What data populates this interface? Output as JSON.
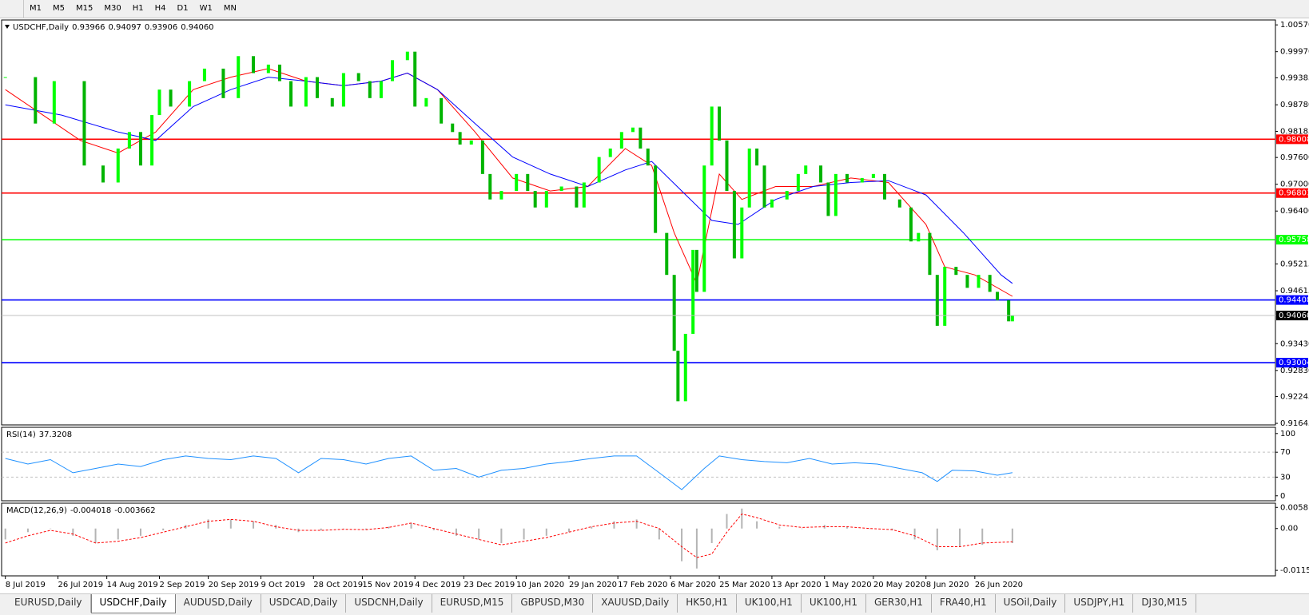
{
  "toolbar": {
    "timeframes": [
      "M1",
      "M5",
      "M15",
      "M30",
      "H1",
      "H4",
      "D1",
      "W1",
      "MN"
    ]
  },
  "chart_data": [
    {
      "type": "candlestick",
      "title": "USDCHF,Daily",
      "header_ohlc": [
        0.93966,
        0.94097,
        0.93906,
        {
          "value": 0.9406,
          "label": "0.94060"
        }
      ],
      "x": [
        0,
        8,
        13,
        21,
        26,
        30,
        33,
        36,
        39,
        41,
        44,
        49,
        53,
        58,
        62,
        66,
        70,
        73,
        76,
        80,
        83,
        87,
        90,
        94,
        97,
        100,
        103,
        107,
        109,
        112,
        116,
        119,
        121,
        124,
        127,
        129,
        132,
        136,
        139,
        141,
        144,
        148,
        152,
        154,
        158,
        161,
        164,
        167,
        169,
        171,
        173,
        176,
        178,
        179,
        181,
        183,
        184,
        186,
        188,
        190,
        192,
        194,
        196,
        198,
        200,
        202,
        204,
        208,
        211,
        213,
        217,
        219,
        221,
        224,
        228,
        231,
        234,
        238,
        241,
        243,
        246,
        248,
        250,
        253,
        256,
        259,
        262,
        264,
        267,
        268
      ],
      "close": [
        0.994,
        0.9836,
        0.9931,
        0.9742,
        0.9704,
        0.978,
        0.9817,
        0.9742,
        0.9855,
        0.9912,
        0.9874,
        0.9931,
        0.9959,
        0.9893,
        0.9987,
        0.9949,
        0.9968,
        0.9931,
        0.9874,
        0.994,
        0.9893,
        0.9874,
        0.9949,
        0.9931,
        0.9893,
        0.9931,
        0.9978,
        0.9997,
        0.9874,
        0.9893,
        0.9836,
        0.9817,
        0.9789,
        0.9798,
        0.9723,
        0.9666,
        0.9685,
        0.9723,
        0.9685,
        0.9648,
        0.9685,
        0.9695,
        0.9648,
        0.9704,
        0.9761,
        0.978,
        0.9817,
        0.9827,
        0.978,
        0.9742,
        0.9591,
        0.9497,
        0.9327,
        0.9214,
        0.9365,
        0.9553,
        0.9459,
        0.9742,
        0.9874,
        0.9798,
        0.9685,
        0.9534,
        0.9648,
        0.978,
        0.9742,
        0.9648,
        0.9666,
        0.9685,
        0.9723,
        0.9742,
        0.9704,
        0.9629,
        0.9723,
        0.9704,
        0.9714,
        0.9723,
        0.9666,
        0.9648,
        0.9572,
        0.9591,
        0.9497,
        0.9383,
        0.9515,
        0.9497,
        0.9468,
        0.9497,
        0.9459,
        0.944,
        0.9393,
        0.9406
      ],
      "up_color": "#00ff00",
      "down_color": "#00b400",
      "moving_averages": [
        {
          "color": "#ff0000",
          "x": [
            0,
            10,
            20,
            30,
            40,
            50,
            60,
            70,
            80,
            90,
            100,
            107,
            115,
            125,
            135,
            145,
            155,
            165,
            172,
            178,
            184,
            190,
            196,
            205,
            215,
            225,
            235,
            245,
            250,
            258,
            268
          ],
          "values": [
            0.9912,
            0.9855,
            0.9798,
            0.977,
            0.9817,
            0.9912,
            0.994,
            0.9959,
            0.9931,
            0.9921,
            0.9931,
            0.9949,
            0.9912,
            0.9817,
            0.9714,
            0.9685,
            0.9695,
            0.978,
            0.9742,
            0.9591,
            0.9478,
            0.9723,
            0.9666,
            0.9695,
            0.9695,
            0.9714,
            0.9704,
            0.961,
            0.9515,
            0.9497,
            0.9449
          ]
        },
        {
          "color": "#0000ff",
          "x": [
            0,
            15,
            30,
            40,
            50,
            60,
            70,
            80,
            90,
            100,
            107,
            115,
            125,
            135,
            145,
            155,
            165,
            172,
            180,
            188,
            195,
            205,
            215,
            225,
            235,
            245,
            255,
            265,
            268
          ],
          "values": [
            0.9878,
            0.9855,
            0.9817,
            0.9798,
            0.9874,
            0.9912,
            0.994,
            0.9931,
            0.9921,
            0.9931,
            0.9949,
            0.9912,
            0.9836,
            0.9761,
            0.9723,
            0.9695,
            0.9732,
            0.9751,
            0.9685,
            0.9619,
            0.961,
            0.9666,
            0.9695,
            0.9704,
            0.9708,
            0.9676,
            0.9591,
            0.9497,
            0.9478
          ]
        }
      ],
      "levels": [
        {
          "value": 0.98008,
          "color": "#ff0000"
        },
        {
          "value": 0.96803,
          "color": "#ff0000"
        },
        {
          "value": 0.95758,
          "color": "#00ff00"
        },
        {
          "value": 0.94408,
          "color": "#0000ff"
        },
        {
          "value": 0.93004,
          "color": "#0000ff"
        }
      ],
      "xlim": [
        -1,
        338
      ],
      "ylim": [
        0.9161,
        1.0068
      ],
      "yticks": [
        {
          "value": 1.0057,
          "label": "1.00570"
        },
        {
          "value": 0.9997,
          "label": "0.99970"
        },
        0.99385,
        {
          "value": 0.9878,
          "label": "0.98780"
        },
        0.98185,
        {
          "value": 0.976,
          "label": "0.97600"
        },
        {
          "value": 0.97,
          "label": "0.97000"
        },
        {
          "value": 0.964,
          "label": "0.96400"
        },
        0.95215,
        0.94615,
        {
          "value": 0.9343,
          "label": "0.93430"
        },
        {
          "value": 0.9283,
          "label": "0.92830"
        },
        0.92245,
        0.91645
      ],
      "xticks": [
        {
          "value": 0,
          "label": "8 Jul 2019"
        },
        {
          "value": 14,
          "label": "26 Jul 2019"
        },
        {
          "value": 27,
          "label": "14 Aug 2019"
        },
        {
          "value": 41,
          "label": "2 Sep 2019"
        },
        {
          "value": 54,
          "label": "20 Sep 2019"
        },
        {
          "value": 68,
          "label": "9 Oct 2019"
        },
        {
          "value": 82,
          "label": "28 Oct 2019"
        },
        {
          "value": 95,
          "label": "15 Nov 2019"
        },
        {
          "value": 109,
          "label": "4 Dec 2019"
        },
        {
          "value": 122,
          "label": "23 Dec 2019"
        },
        {
          "value": 136,
          "label": "10 Jan 2020"
        },
        {
          "value": 150,
          "label": "29 Jan 2020"
        },
        {
          "value": 163,
          "label": "17 Feb 2020"
        },
        {
          "value": 177,
          "label": "6 Mar 2020"
        },
        {
          "value": 190,
          "label": "25 Mar 2020"
        },
        {
          "value": 204,
          "label": "13 Apr 2020"
        },
        {
          "value": 218,
          "label": "1 May 2020"
        },
        {
          "value": 231,
          "label": "20 May 2020"
        },
        {
          "value": 245,
          "label": "8 Jun 2020"
        },
        {
          "value": 258,
          "label": "26 Jun 2020"
        }
      ]
    },
    {
      "type": "line",
      "title": "RSI(14)",
      "current": 37.3208,
      "color": "#1e90ff",
      "x": [
        0,
        6,
        12,
        18,
        24,
        30,
        36,
        42,
        48,
        54,
        60,
        66,
        72,
        78,
        84,
        90,
        96,
        102,
        108,
        114,
        120,
        126,
        132,
        138,
        144,
        150,
        156,
        162,
        168,
        174,
        180,
        186,
        190,
        196,
        202,
        208,
        214,
        220,
        226,
        232,
        238,
        244,
        248,
        252,
        258,
        264,
        268
      ],
      "values": [
        60,
        51,
        58,
        37,
        44,
        51,
        47,
        58,
        64,
        60,
        58,
        64,
        60,
        37,
        60,
        58,
        51,
        60,
        64,
        41,
        44,
        30,
        41,
        44,
        51,
        55,
        60,
        64,
        64,
        37,
        10,
        44,
        64,
        58,
        55,
        53,
        60,
        51,
        53,
        51,
        44,
        37,
        23,
        41,
        40,
        33,
        37.3
      ],
      "level_lines": [
        70,
        30
      ],
      "xlim": [
        -1,
        338
      ],
      "ylim": [
        -8,
        110
      ],
      "yticks": [
        100,
        70,
        30,
        0
      ]
    },
    {
      "type": "macd",
      "title": "MACD(12,26,9)",
      "current": [
        -0.004018,
        -0.003662
      ],
      "histogram_color": "#b4b4b4",
      "signal_color": "#ff0000",
      "x": [
        0,
        6,
        12,
        18,
        24,
        30,
        36,
        42,
        48,
        54,
        60,
        66,
        72,
        78,
        84,
        90,
        96,
        102,
        108,
        114,
        120,
        126,
        132,
        138,
        144,
        150,
        156,
        162,
        168,
        174,
        180,
        184,
        188,
        192,
        196,
        200,
        206,
        212,
        218,
        224,
        230,
        236,
        242,
        248,
        254,
        260,
        268
      ],
      "histogram": [
        -0.003,
        -0.001,
        0.0,
        -0.002,
        -0.004,
        -0.003,
        -0.002,
        -0.0005,
        0.001,
        0.0025,
        0.0025,
        0.002,
        0.001,
        -0.001,
        -0.0005,
        0.0,
        -0.0003,
        0.0005,
        0.0015,
        -0.0005,
        -0.002,
        -0.003,
        -0.004,
        -0.003,
        -0.002,
        -0.001,
        0.0005,
        0.002,
        0.0025,
        -0.003,
        -0.009,
        -0.011,
        -0.004,
        0.004,
        0.0055,
        0.002,
        0.0005,
        0.0,
        0.001,
        0.0005,
        0.0,
        -0.0005,
        -0.003,
        -0.006,
        -0.005,
        -0.0045,
        -0.004018
      ],
      "signal": [
        -0.004,
        -0.002,
        -0.0005,
        -0.0015,
        -0.004,
        -0.0035,
        -0.0025,
        -0.001,
        0.0005,
        0.002,
        0.0025,
        0.002,
        0.0005,
        -0.0005,
        -0.0005,
        -0.0002,
        -0.0003,
        0.0003,
        0.0015,
        0.0,
        -0.0015,
        -0.003,
        -0.0045,
        -0.0035,
        -0.0025,
        -0.001,
        0.0005,
        0.0015,
        0.002,
        0.0,
        -0.005,
        -0.008,
        -0.007,
        -0.001,
        0.004,
        0.003,
        0.001,
        0.0003,
        0.0005,
        0.0005,
        0.0,
        -0.0003,
        -0.002,
        -0.005,
        -0.005,
        -0.004,
        -0.003662
      ],
      "xlim": [
        -1,
        338
      ],
      "ylim": [
        -0.01303,
        0.00698
      ],
      "yticks": [
        0.005818,
        {
          "value": 0,
          "label": "0.00"
        },
        -0.011514
      ]
    }
  ],
  "tabs": {
    "items": [
      "EURUSD,Daily",
      "USDCHF,Daily",
      "AUDUSD,Daily",
      "USDCAD,Daily",
      "USDCNH,Daily",
      "EURUSD,M15",
      "GBPUSD,M30",
      "XAUUSD,Daily",
      "HK50,H1",
      "UK100,H1",
      "UK100,H1",
      "GER30,H1",
      "FRA40,H1",
      "USOil,Daily",
      "USDJPY,H1",
      "DJ30,M15"
    ],
    "active": 1
  }
}
